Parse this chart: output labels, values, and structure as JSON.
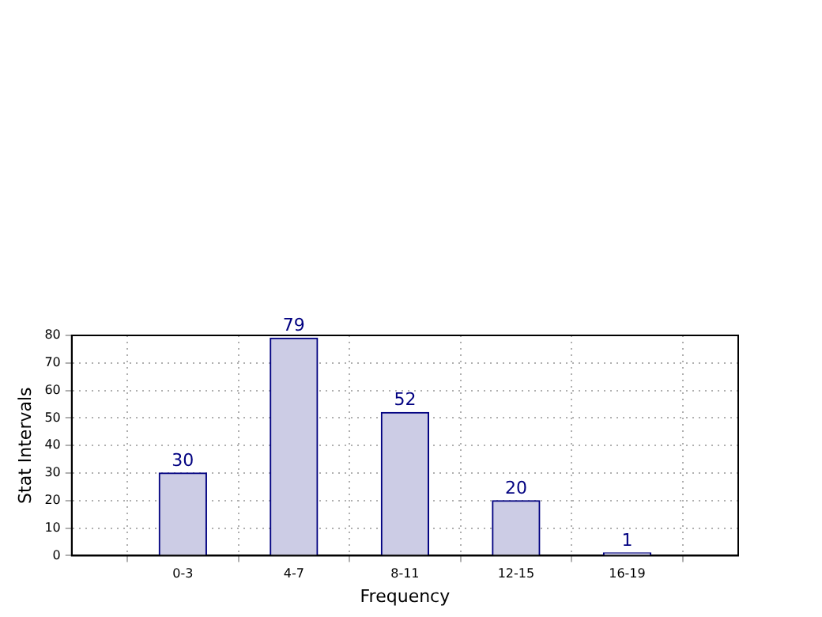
{
  "chart_data": {
    "type": "bar",
    "xlabel": "Frequency",
    "ylabel": "Stat Intervals",
    "categories": [
      "0-3",
      "4-7",
      "8-11",
      "12-15",
      "16-19"
    ],
    "values": [
      30,
      79,
      52,
      20,
      1
    ],
    "color": "#ccccE5",
    "ylim": [
      0,
      80
    ],
    "yticks": [
      0,
      10,
      20,
      30,
      40,
      50,
      60,
      70,
      80
    ],
    "grid": true,
    "data_labels": true
  }
}
